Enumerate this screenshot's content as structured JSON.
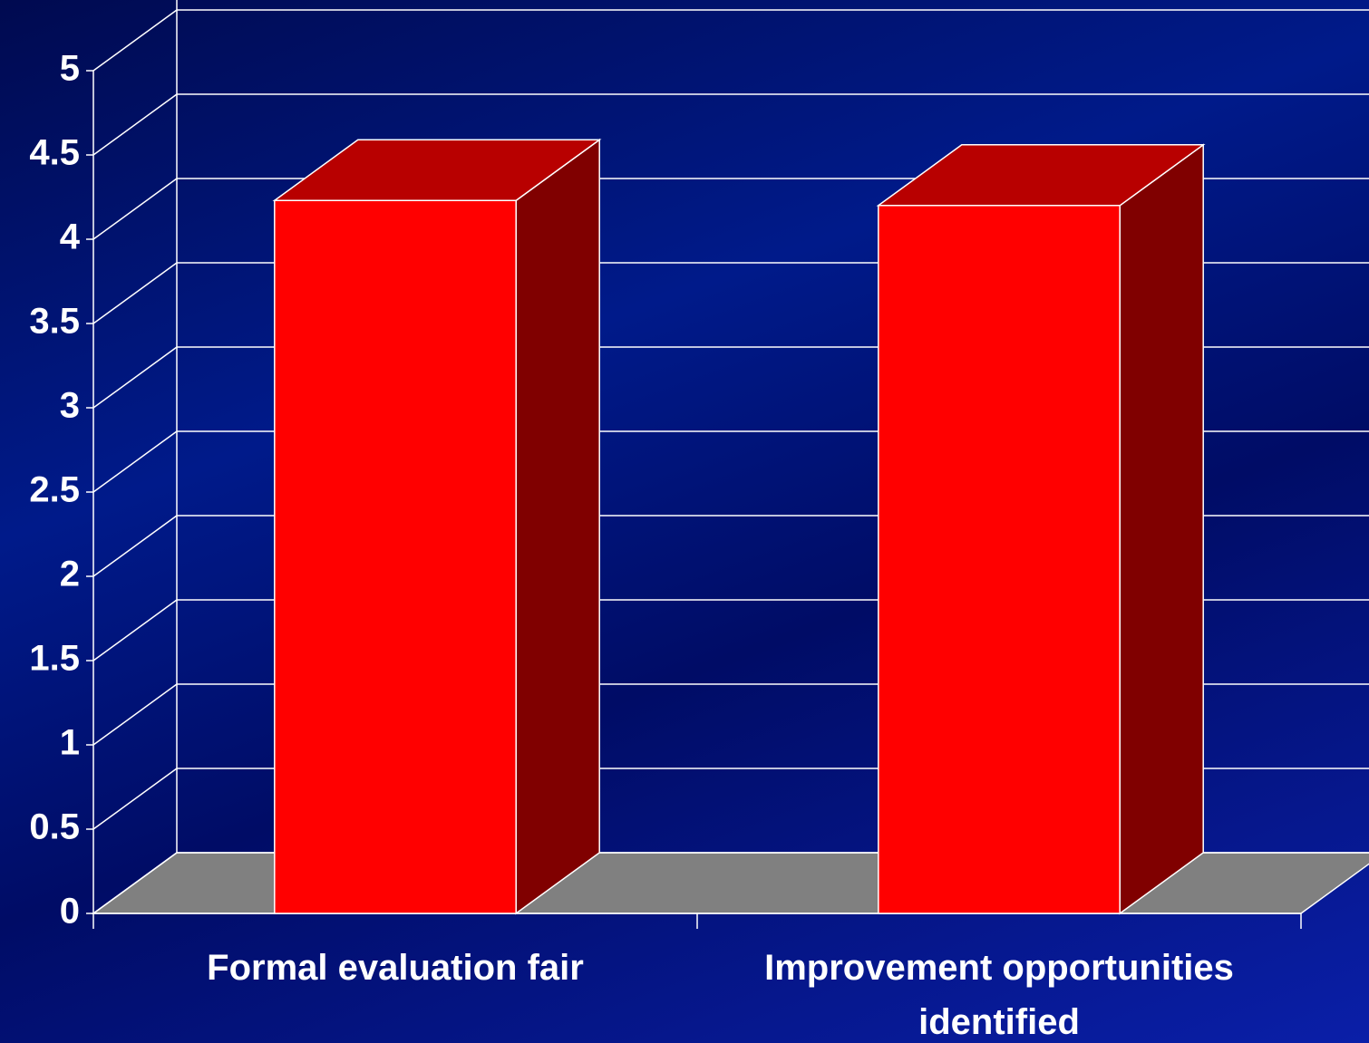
{
  "chart_data": {
    "type": "bar3d",
    "categories": [
      "Formal evaluation fair",
      "Improvement opportunities identified"
    ],
    "values": [
      4.23,
      4.2
    ],
    "color": "#ff0000",
    "ylim": [
      0,
      5
    ],
    "yticks": [
      0,
      0.5,
      1,
      1.5,
      2,
      2.5,
      3,
      3.5,
      4,
      4.5,
      5
    ],
    "grid": true
  }
}
